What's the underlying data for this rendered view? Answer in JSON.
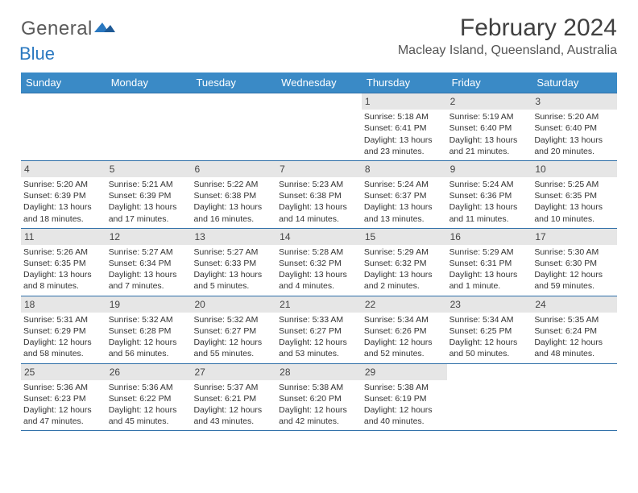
{
  "logo": {
    "general": "General",
    "blue": "Blue"
  },
  "title": "February 2024",
  "location": "Macleay Island, Queensland, Australia",
  "day_headers": [
    "Sunday",
    "Monday",
    "Tuesday",
    "Wednesday",
    "Thursday",
    "Friday",
    "Saturday"
  ],
  "weeks": [
    [
      null,
      null,
      null,
      null,
      {
        "n": "1",
        "sr": "Sunrise: 5:18 AM",
        "ss": "Sunset: 6:41 PM",
        "dl1": "Daylight: 13 hours",
        "dl2": "and 23 minutes."
      },
      {
        "n": "2",
        "sr": "Sunrise: 5:19 AM",
        "ss": "Sunset: 6:40 PM",
        "dl1": "Daylight: 13 hours",
        "dl2": "and 21 minutes."
      },
      {
        "n": "3",
        "sr": "Sunrise: 5:20 AM",
        "ss": "Sunset: 6:40 PM",
        "dl1": "Daylight: 13 hours",
        "dl2": "and 20 minutes."
      }
    ],
    [
      {
        "n": "4",
        "sr": "Sunrise: 5:20 AM",
        "ss": "Sunset: 6:39 PM",
        "dl1": "Daylight: 13 hours",
        "dl2": "and 18 minutes."
      },
      {
        "n": "5",
        "sr": "Sunrise: 5:21 AM",
        "ss": "Sunset: 6:39 PM",
        "dl1": "Daylight: 13 hours",
        "dl2": "and 17 minutes."
      },
      {
        "n": "6",
        "sr": "Sunrise: 5:22 AM",
        "ss": "Sunset: 6:38 PM",
        "dl1": "Daylight: 13 hours",
        "dl2": "and 16 minutes."
      },
      {
        "n": "7",
        "sr": "Sunrise: 5:23 AM",
        "ss": "Sunset: 6:38 PM",
        "dl1": "Daylight: 13 hours",
        "dl2": "and 14 minutes."
      },
      {
        "n": "8",
        "sr": "Sunrise: 5:24 AM",
        "ss": "Sunset: 6:37 PM",
        "dl1": "Daylight: 13 hours",
        "dl2": "and 13 minutes."
      },
      {
        "n": "9",
        "sr": "Sunrise: 5:24 AM",
        "ss": "Sunset: 6:36 PM",
        "dl1": "Daylight: 13 hours",
        "dl2": "and 11 minutes."
      },
      {
        "n": "10",
        "sr": "Sunrise: 5:25 AM",
        "ss": "Sunset: 6:35 PM",
        "dl1": "Daylight: 13 hours",
        "dl2": "and 10 minutes."
      }
    ],
    [
      {
        "n": "11",
        "sr": "Sunrise: 5:26 AM",
        "ss": "Sunset: 6:35 PM",
        "dl1": "Daylight: 13 hours",
        "dl2": "and 8 minutes."
      },
      {
        "n": "12",
        "sr": "Sunrise: 5:27 AM",
        "ss": "Sunset: 6:34 PM",
        "dl1": "Daylight: 13 hours",
        "dl2": "and 7 minutes."
      },
      {
        "n": "13",
        "sr": "Sunrise: 5:27 AM",
        "ss": "Sunset: 6:33 PM",
        "dl1": "Daylight: 13 hours",
        "dl2": "and 5 minutes."
      },
      {
        "n": "14",
        "sr": "Sunrise: 5:28 AM",
        "ss": "Sunset: 6:32 PM",
        "dl1": "Daylight: 13 hours",
        "dl2": "and 4 minutes."
      },
      {
        "n": "15",
        "sr": "Sunrise: 5:29 AM",
        "ss": "Sunset: 6:32 PM",
        "dl1": "Daylight: 13 hours",
        "dl2": "and 2 minutes."
      },
      {
        "n": "16",
        "sr": "Sunrise: 5:29 AM",
        "ss": "Sunset: 6:31 PM",
        "dl1": "Daylight: 13 hours",
        "dl2": "and 1 minute."
      },
      {
        "n": "17",
        "sr": "Sunrise: 5:30 AM",
        "ss": "Sunset: 6:30 PM",
        "dl1": "Daylight: 12 hours",
        "dl2": "and 59 minutes."
      }
    ],
    [
      {
        "n": "18",
        "sr": "Sunrise: 5:31 AM",
        "ss": "Sunset: 6:29 PM",
        "dl1": "Daylight: 12 hours",
        "dl2": "and 58 minutes."
      },
      {
        "n": "19",
        "sr": "Sunrise: 5:32 AM",
        "ss": "Sunset: 6:28 PM",
        "dl1": "Daylight: 12 hours",
        "dl2": "and 56 minutes."
      },
      {
        "n": "20",
        "sr": "Sunrise: 5:32 AM",
        "ss": "Sunset: 6:27 PM",
        "dl1": "Daylight: 12 hours",
        "dl2": "and 55 minutes."
      },
      {
        "n": "21",
        "sr": "Sunrise: 5:33 AM",
        "ss": "Sunset: 6:27 PM",
        "dl1": "Daylight: 12 hours",
        "dl2": "and 53 minutes."
      },
      {
        "n": "22",
        "sr": "Sunrise: 5:34 AM",
        "ss": "Sunset: 6:26 PM",
        "dl1": "Daylight: 12 hours",
        "dl2": "and 52 minutes."
      },
      {
        "n": "23",
        "sr": "Sunrise: 5:34 AM",
        "ss": "Sunset: 6:25 PM",
        "dl1": "Daylight: 12 hours",
        "dl2": "and 50 minutes."
      },
      {
        "n": "24",
        "sr": "Sunrise: 5:35 AM",
        "ss": "Sunset: 6:24 PM",
        "dl1": "Daylight: 12 hours",
        "dl2": "and 48 minutes."
      }
    ],
    [
      {
        "n": "25",
        "sr": "Sunrise: 5:36 AM",
        "ss": "Sunset: 6:23 PM",
        "dl1": "Daylight: 12 hours",
        "dl2": "and 47 minutes."
      },
      {
        "n": "26",
        "sr": "Sunrise: 5:36 AM",
        "ss": "Sunset: 6:22 PM",
        "dl1": "Daylight: 12 hours",
        "dl2": "and 45 minutes."
      },
      {
        "n": "27",
        "sr": "Sunrise: 5:37 AM",
        "ss": "Sunset: 6:21 PM",
        "dl1": "Daylight: 12 hours",
        "dl2": "and 43 minutes."
      },
      {
        "n": "28",
        "sr": "Sunrise: 5:38 AM",
        "ss": "Sunset: 6:20 PM",
        "dl1": "Daylight: 12 hours",
        "dl2": "and 42 minutes."
      },
      {
        "n": "29",
        "sr": "Sunrise: 5:38 AM",
        "ss": "Sunset: 6:19 PM",
        "dl1": "Daylight: 12 hours",
        "dl2": "and 40 minutes."
      },
      null,
      null
    ]
  ],
  "colors": {
    "header_bg": "#3a8ac6",
    "rule": "#2f6fa8",
    "daynum_bg": "#e6e6e6"
  }
}
